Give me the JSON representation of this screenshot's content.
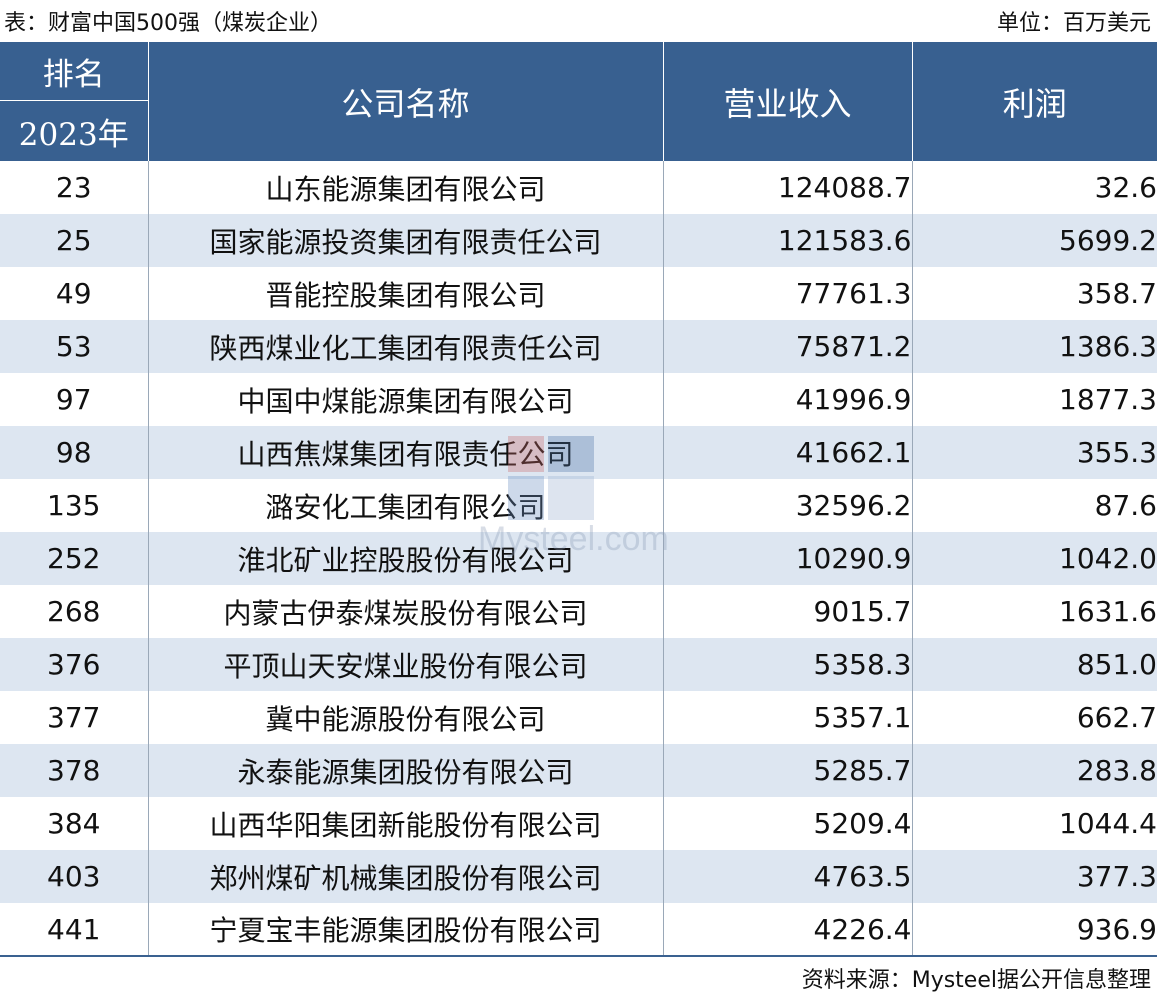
{
  "header": {
    "caption": "表：财富中国500强（煤炭企业）",
    "unit": "单位：百万美元"
  },
  "columns": {
    "rank_top": "排名",
    "rank_bottom": "2023年",
    "company": "公司名称",
    "revenue": "营业收入",
    "profit": "利润"
  },
  "rows": [
    {
      "rank": "23",
      "company": "山东能源集团有限公司",
      "revenue": "124088.7",
      "profit": "32.6"
    },
    {
      "rank": "25",
      "company": "国家能源投资集团有限责任公司",
      "revenue": "121583.6",
      "profit": "5699.2"
    },
    {
      "rank": "49",
      "company": "晋能控股集团有限公司",
      "revenue": "77761.3",
      "profit": "358.7"
    },
    {
      "rank": "53",
      "company": "陕西煤业化工集团有限责任公司",
      "revenue": "75871.2",
      "profit": "1386.3"
    },
    {
      "rank": "97",
      "company": "中国中煤能源集团有限公司",
      "revenue": "41996.9",
      "profit": "1877.3"
    },
    {
      "rank": "98",
      "company": "山西焦煤集团有限责任公司",
      "revenue": "41662.1",
      "profit": "355.3"
    },
    {
      "rank": "135",
      "company": "潞安化工集团有限公司",
      "revenue": "32596.2",
      "profit": "87.6"
    },
    {
      "rank": "252",
      "company": "淮北矿业控股股份有限公司",
      "revenue": "10290.9",
      "profit": "1042.0"
    },
    {
      "rank": "268",
      "company": "内蒙古伊泰煤炭股份有限公司",
      "revenue": "9015.7",
      "profit": "1631.6"
    },
    {
      "rank": "376",
      "company": "平顶山天安煤业股份有限公司",
      "revenue": "5358.3",
      "profit": "851.0"
    },
    {
      "rank": "377",
      "company": "冀中能源股份有限公司",
      "revenue": "5357.1",
      "profit": "662.7"
    },
    {
      "rank": "378",
      "company": "永泰能源集团股份有限公司",
      "revenue": "5285.7",
      "profit": "283.8"
    },
    {
      "rank": "384",
      "company": "山西华阳集团新能股份有限公司",
      "revenue": "5209.4",
      "profit": "1044.4"
    },
    {
      "rank": "403",
      "company": "郑州煤矿机械集团股份有限公司",
      "revenue": "4763.5",
      "profit": "377.3"
    },
    {
      "rank": "441",
      "company": "宁夏宝丰能源集团股份有限公司",
      "revenue": "4226.4",
      "profit": "936.9"
    }
  ],
  "footer": {
    "source": "资料来源：Mysteel据公开信息整理"
  },
  "watermark": {
    "text": "Mysteel.com"
  },
  "colors": {
    "header_bg": "#386090",
    "stripe_bg": "#dde6f1"
  }
}
